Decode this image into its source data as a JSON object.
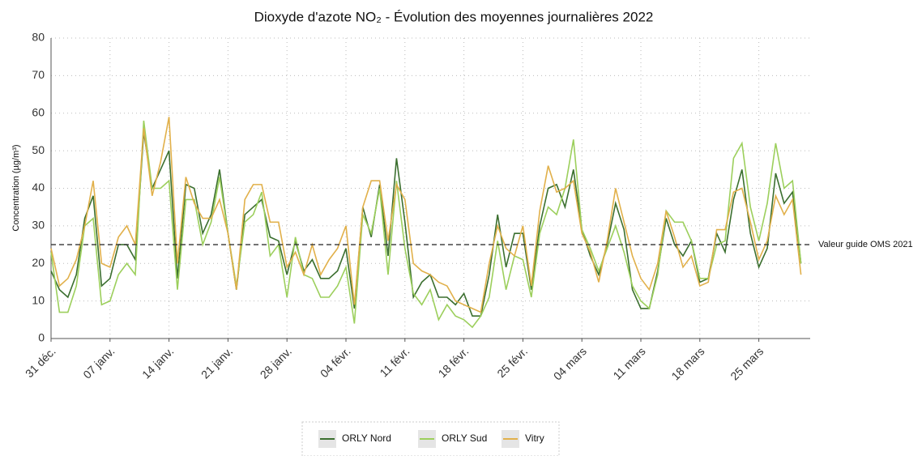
{
  "chart_data": {
    "type": "line",
    "title": "Dioxyde d'azote NO₂ - Évolution des moyennes journalières 2022",
    "y_label": "Concentration (µg/m³)",
    "categories": [
      "31 déc.",
      null,
      null,
      null,
      null,
      null,
      null,
      "07 janv.",
      null,
      null,
      null,
      null,
      null,
      null,
      "14 janv.",
      null,
      null,
      null,
      null,
      null,
      null,
      "21 janv.",
      null,
      null,
      null,
      null,
      null,
      null,
      "28 janv.",
      null,
      null,
      null,
      null,
      null,
      null,
      "04 févr.",
      null,
      null,
      null,
      null,
      null,
      null,
      "11 févr.",
      null,
      null,
      null,
      null,
      null,
      null,
      "18 févr.",
      null,
      null,
      null,
      null,
      null,
      null,
      "25 févr.",
      null,
      null,
      null,
      null,
      null,
      null,
      "04 mars",
      null,
      null,
      null,
      null,
      null,
      null,
      "11 mars",
      null,
      null,
      null,
      null,
      null,
      null,
      "18 mars",
      null,
      null,
      null,
      null,
      null,
      null,
      "25 mars",
      null,
      null,
      null,
      null,
      null
    ],
    "series": [
      {
        "name": "ORLY Nord",
        "color": "#3b6f2f",
        "values": [
          18,
          13,
          11,
          17,
          32,
          38,
          14,
          16,
          25,
          25,
          21,
          55,
          40,
          45,
          50,
          16,
          41,
          40,
          28,
          33,
          45,
          28,
          13,
          33,
          35,
          37,
          27,
          26,
          17,
          26,
          18,
          21,
          16,
          16,
          18,
          24,
          8,
          35,
          27,
          41,
          22,
          48,
          31,
          11,
          15,
          17,
          11,
          11,
          9,
          12,
          6,
          6,
          17,
          33,
          19,
          28,
          28,
          13,
          30,
          40,
          41,
          35,
          45,
          29,
          22,
          17,
          25,
          36,
          29,
          13,
          8,
          8,
          18,
          32,
          25,
          22,
          26,
          15,
          16,
          28,
          23,
          37,
          45,
          28,
          19,
          24,
          44,
          36,
          39,
          20
        ]
      },
      {
        "name": "ORLY Sud",
        "color": "#9ccf5c",
        "values": [
          23,
          7,
          7,
          14,
          30,
          32,
          9,
          10,
          17,
          20,
          17,
          58,
          40,
          40,
          42,
          13,
          37,
          37,
          25,
          31,
          43,
          28,
          14,
          31,
          33,
          39,
          22,
          25,
          11,
          27,
          17,
          16,
          11,
          11,
          14,
          19,
          4,
          33,
          28,
          40,
          17,
          42,
          24,
          12,
          9,
          13,
          5,
          9,
          6,
          5,
          3,
          6,
          11,
          26,
          13,
          22,
          21,
          11,
          28,
          35,
          33,
          40,
          53,
          29,
          24,
          18,
          24,
          30,
          23,
          14,
          10,
          8,
          17,
          34,
          31,
          31,
          26,
          16,
          16,
          25,
          26,
          48,
          52,
          35,
          26,
          36,
          52,
          40,
          42,
          20
        ]
      },
      {
        "name": "Vitry",
        "color": "#e1b04a",
        "values": [
          24,
          14,
          16,
          21,
          30,
          42,
          20,
          19,
          27,
          30,
          25,
          56,
          38,
          47,
          59,
          20,
          43,
          36,
          32,
          32,
          37,
          28,
          13,
          37,
          41,
          41,
          31,
          31,
          19,
          23,
          17,
          25,
          17,
          21,
          24,
          30,
          9,
          35,
          42,
          42,
          26,
          41,
          37,
          20,
          18,
          17,
          15,
          14,
          10,
          9,
          8,
          7,
          20,
          30,
          24,
          22,
          30,
          14,
          34,
          46,
          39,
          40,
          42,
          28,
          23,
          15,
          26,
          40,
          31,
          22,
          16,
          13,
          20,
          34,
          27,
          19,
          22,
          14,
          15,
          29,
          29,
          39,
          40,
          31,
          21,
          26,
          38,
          33,
          37,
          17
        ]
      }
    ],
    "ylim": [
      0,
      80
    ],
    "yticks": [
      0,
      10,
      20,
      30,
      40,
      50,
      60,
      70,
      80
    ],
    "grid": true,
    "reference_line": {
      "value": 25,
      "label": "Valeur guide OMS 2021"
    },
    "legend": "bottom"
  }
}
